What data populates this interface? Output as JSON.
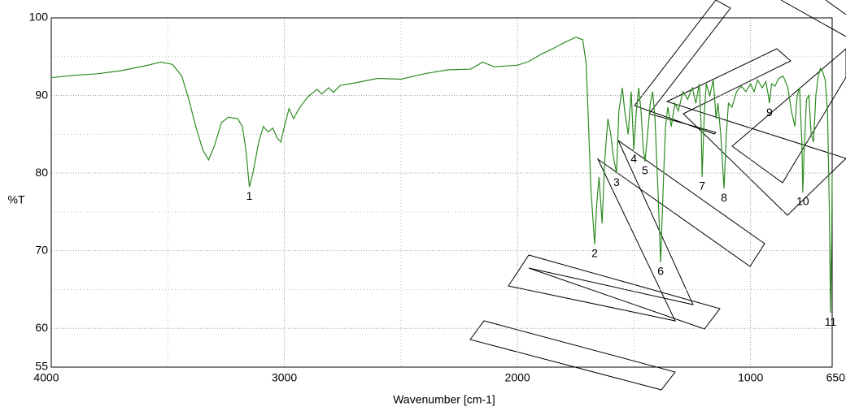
{
  "chart_data": {
    "type": "line",
    "x_label": "Wavenumber [cm-1]",
    "y_label": "%T",
    "xlim": [
      4000,
      650
    ],
    "ylim": [
      55,
      100
    ],
    "xticks": [
      4000,
      3000,
      2000,
      1000,
      650
    ],
    "yticks": [
      55,
      60,
      70,
      80,
      90,
      100
    ],
    "minor_xticks": [
      3500,
      2500,
      1500
    ],
    "minor_yticks": [
      95,
      85,
      75,
      65
    ],
    "grid": true,
    "color": "#2e8b22",
    "x": [
      4000,
      3900,
      3800,
      3700,
      3600,
      3530,
      3480,
      3440,
      3410,
      3380,
      3350,
      3325,
      3300,
      3270,
      3240,
      3200,
      3180,
      3165,
      3150,
      3135,
      3110,
      3090,
      3070,
      3050,
      3030,
      3015,
      3000,
      2980,
      2960,
      2940,
      2900,
      2860,
      2840,
      2810,
      2790,
      2760,
      2700,
      2600,
      2500,
      2400,
      2300,
      2200,
      2150,
      2100,
      2000,
      1950,
      1900,
      1850,
      1800,
      1750,
      1720,
      1705,
      1695,
      1685,
      1669,
      1660,
      1650,
      1637,
      1625,
      1612,
      1600,
      1588,
      1575,
      1565,
      1550,
      1540,
      1525,
      1512,
      1501,
      1490,
      1480,
      1470,
      1460,
      1453,
      1445,
      1430,
      1420,
      1410,
      1395,
      1386,
      1375,
      1365,
      1355,
      1340,
      1325,
      1310,
      1290,
      1270,
      1250,
      1235,
      1220,
      1212,
      1208,
      1198,
      1190,
      1175,
      1160,
      1148,
      1140,
      1128,
      1114,
      1104,
      1095,
      1080,
      1060,
      1040,
      1020,
      1000,
      985,
      970,
      950,
      935,
      925,
      919,
      910,
      895,
      880,
      860,
      840,
      825,
      810,
      800,
      790,
      780,
      776,
      770,
      760,
      750,
      740,
      730,
      720,
      710,
      700,
      690,
      680,
      670,
      662,
      657,
      652,
      650
    ],
    "values": [
      92.3,
      92.6,
      92.8,
      93.2,
      93.8,
      94.3,
      94.0,
      92.5,
      89.5,
      86,
      83,
      81.7,
      83.5,
      86.5,
      87.2,
      87.0,
      86,
      83,
      78.2,
      80,
      84,
      86,
      85.3,
      85.8,
      84.5,
      84,
      86,
      88.3,
      87,
      88.2,
      89.8,
      90.8,
      90.2,
      91.0,
      90.4,
      91.3,
      91.6,
      92.2,
      92.1,
      92.8,
      93.3,
      93.4,
      94.3,
      93.7,
      93.9,
      94.4,
      95.3,
      96.0,
      96.8,
      97.5,
      97.2,
      94,
      86,
      78,
      70.8,
      76,
      79.5,
      73.5,
      82,
      87,
      85,
      82,
      80,
      88,
      91,
      88,
      85,
      90.5,
      83,
      88,
      91,
      88,
      83,
      81.5,
      84,
      89,
      90.5,
      87,
      76,
      68.5,
      78,
      86,
      88.5,
      86,
      89,
      88,
      90.5,
      89.5,
      91,
      89,
      91.5,
      86,
      79.5,
      88,
      91.5,
      90,
      92,
      87,
      89,
      85,
      78,
      85,
      89,
      88.5,
      90.5,
      91.2,
      90.5,
      91.5,
      90.5,
      92,
      91,
      91.8,
      90.2,
      89,
      91.5,
      91.2,
      92.2,
      92.5,
      91,
      88,
      86,
      90,
      91,
      84,
      77.5,
      83,
      89.5,
      90,
      85,
      84,
      90,
      92.5,
      93.5,
      93,
      92,
      88,
      75,
      62,
      72,
      80
    ],
    "peak_labels": [
      {
        "label": "1",
        "x": 3150
      },
      {
        "label": "2",
        "x": 1669
      },
      {
        "label": "3",
        "x": 1575
      },
      {
        "label": "4",
        "x": 1501
      },
      {
        "label": "5",
        "x": 1453
      },
      {
        "label": "6",
        "x": 1386
      },
      {
        "label": "7",
        "x": 1208
      },
      {
        "label": "8",
        "x": 1114
      },
      {
        "label": "9",
        "x": 919
      },
      {
        "label": "10",
        "x": 776
      },
      {
        "label": "11",
        "x": 657
      }
    ]
  }
}
